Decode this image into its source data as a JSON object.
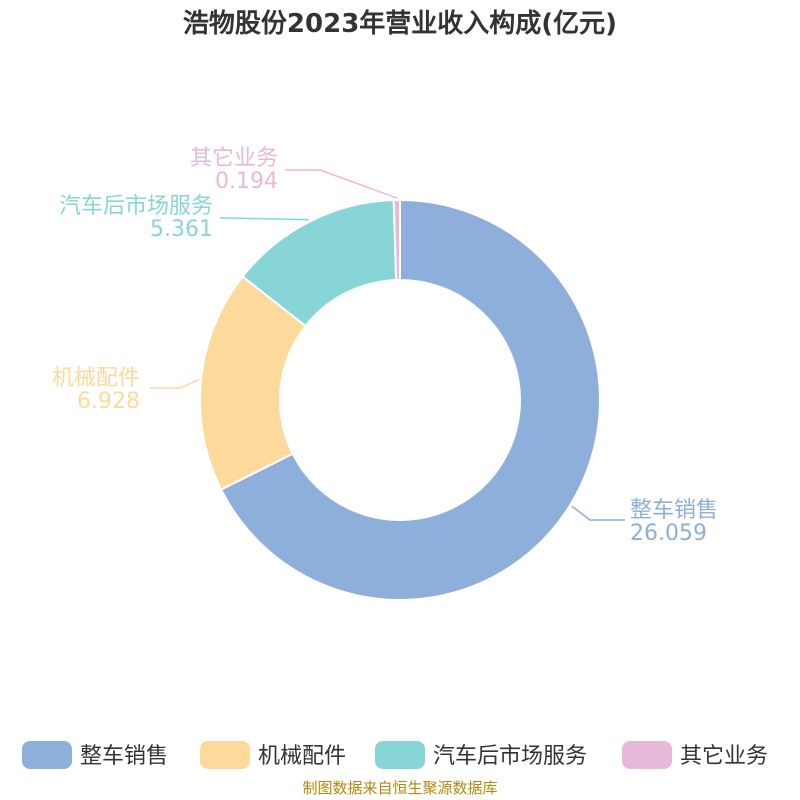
{
  "chart_data": {
    "type": "pie",
    "title": "浩物股份2023年营业收入构成(亿元)",
    "series": [
      {
        "name": "整车销售",
        "value": 26.059,
        "value_label": "26.059",
        "color": "#8eaedb"
      },
      {
        "name": "机械配件",
        "value": 6.928,
        "value_label": "6.928",
        "color": "#fdd99b"
      },
      {
        "name": "汽车后市场服务",
        "value": 5.361,
        "value_label": "5.361",
        "color": "#88d5d8"
      },
      {
        "name": "其它业务",
        "value": 0.194,
        "value_label": "0.194",
        "color": "#e8b8d8"
      }
    ],
    "legend_position": "bottom"
  },
  "source": "制图数据来自恒生聚源数据库"
}
